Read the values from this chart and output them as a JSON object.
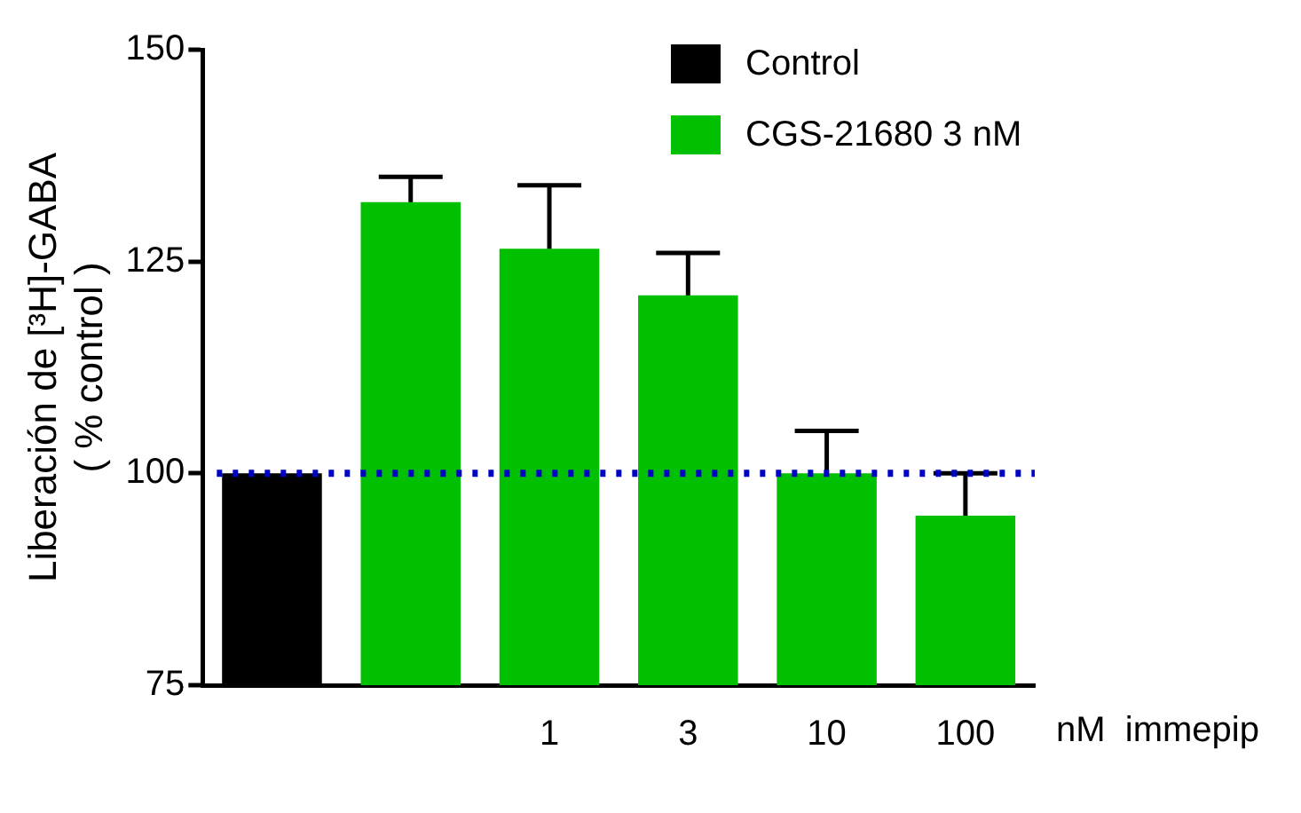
{
  "chart_data": {
    "type": "bar",
    "ylabel": "Liberación de [³H]-GABA\n( % control )",
    "xlabel": "nM  immepip",
    "categories": [
      null,
      null,
      "1",
      "3",
      "10",
      "100"
    ],
    "series": [
      {
        "name": "Control",
        "color": "#000000",
        "values": [
          100,
          null,
          null,
          null,
          null,
          null
        ]
      },
      {
        "name": "CGS-21680 3 nM",
        "color": "#00c000",
        "values": [
          null,
          132,
          126.5,
          121,
          100,
          95
        ],
        "errors": [
          null,
          [
            132,
            135
          ],
          [
            126.5,
            134
          ],
          [
            121,
            126
          ],
          [
            100,
            105
          ],
          [
            95,
            100
          ]
        ]
      }
    ],
    "ylim": [
      75,
      150
    ],
    "yticks": [
      75,
      100,
      125,
      150
    ],
    "grid": false,
    "legend": "top right",
    "ref_lines": [
      {
        "axis": "y",
        "value": 100,
        "color": "#0000cc",
        "line_style": "dotted"
      }
    ]
  }
}
